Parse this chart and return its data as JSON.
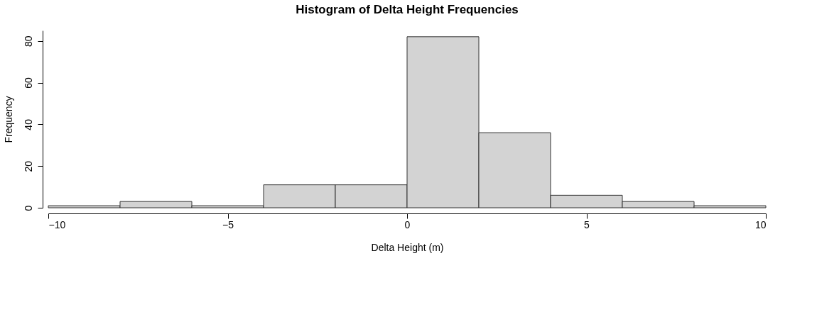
{
  "chart_data": {
    "type": "histogram",
    "title": "Histogram of Delta Height Frequencies",
    "xlabel": "Delta Height (m)",
    "ylabel": "Frequency",
    "bins": [
      -10,
      -8,
      -6,
      -4,
      -2,
      0,
      2,
      4,
      6,
      8,
      10
    ],
    "values": [
      1,
      3,
      1,
      11,
      11,
      82,
      36,
      6,
      3,
      1
    ],
    "color": "#d3d3d3",
    "xlim": [
      -10,
      10
    ],
    "xticks": [
      -10,
      -5,
      0,
      5,
      10
    ],
    "ylim": [
      0,
      85
    ],
    "yticks": [
      0,
      20,
      40,
      60,
      80
    ],
    "grid": false
  }
}
